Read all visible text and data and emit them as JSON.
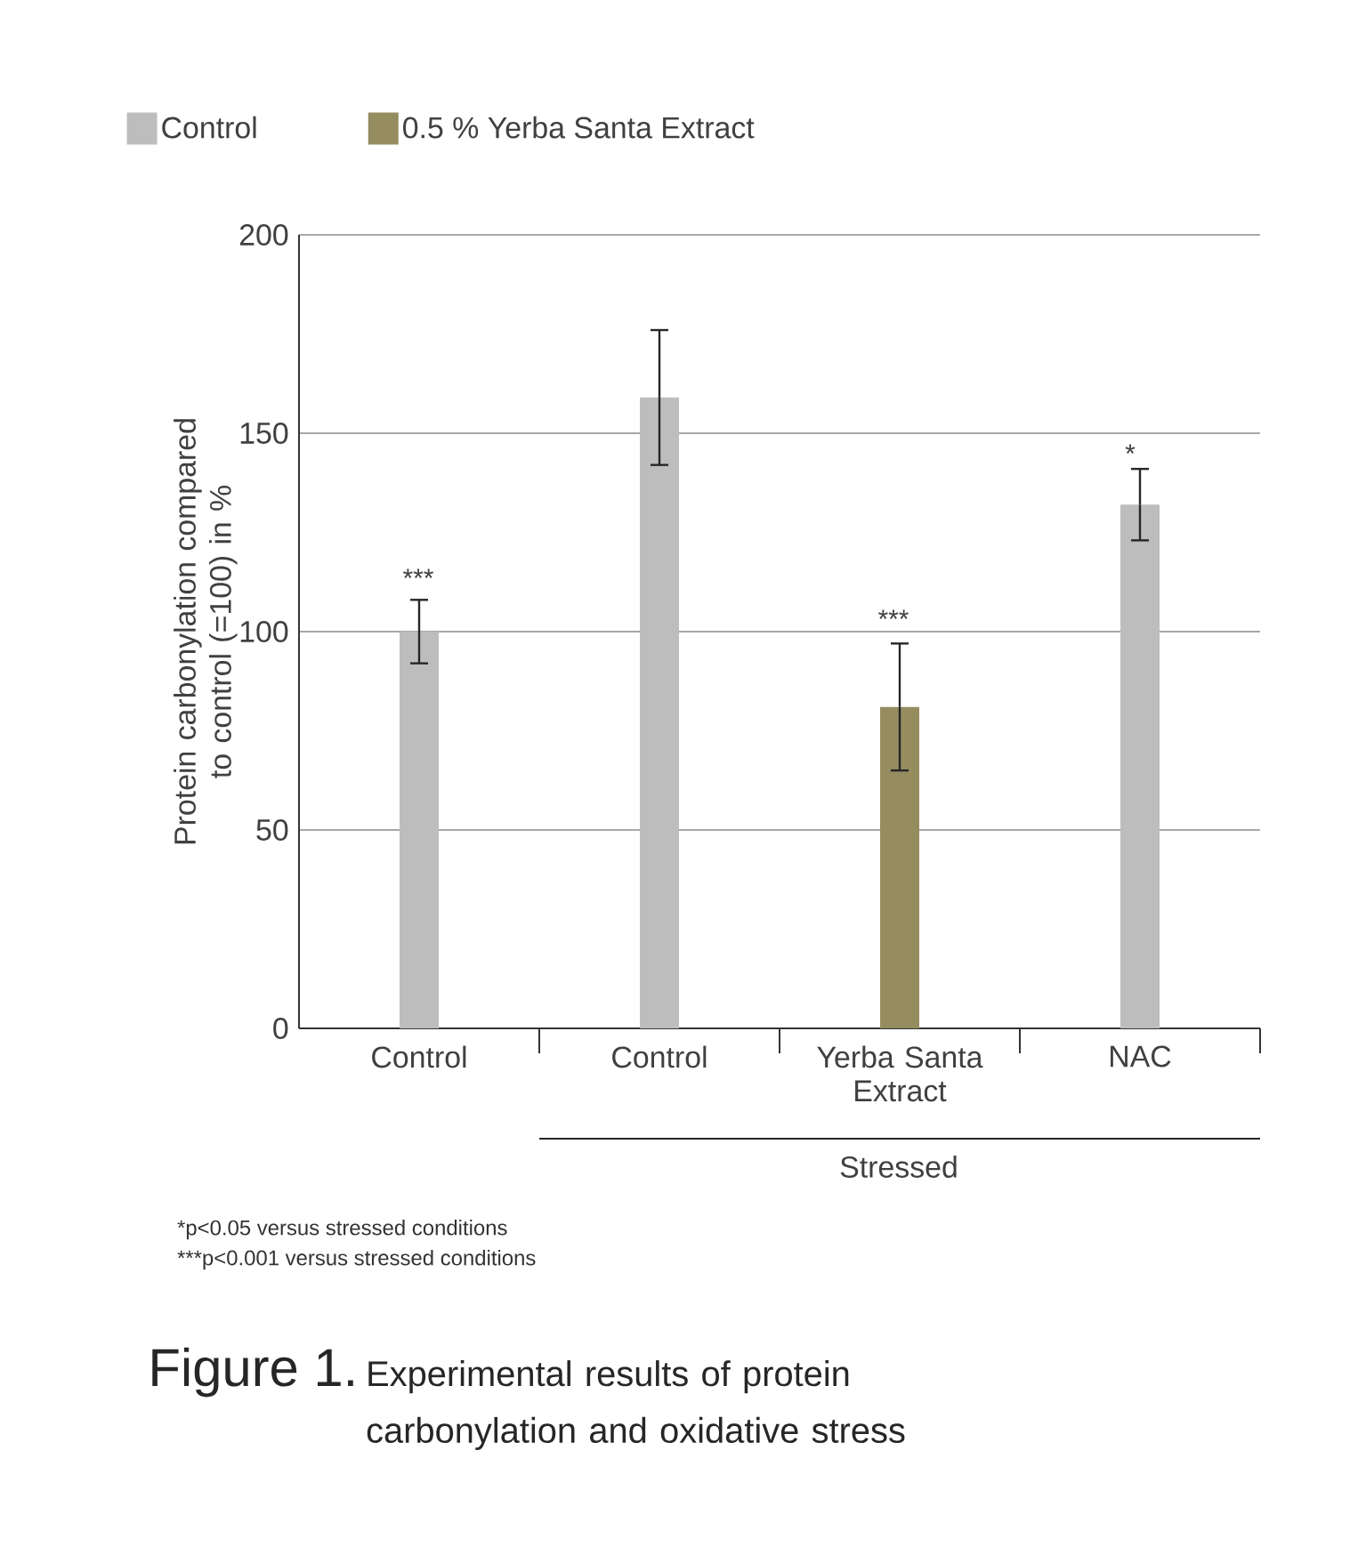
{
  "chart_data": {
    "type": "bar",
    "categories": [
      "Control",
      "Control",
      "Yerba Santa Extract",
      "NAC"
    ],
    "series": [
      {
        "name": "Control",
        "color": "#bdbdbd",
        "values": [
          100,
          159,
          null,
          132
        ],
        "errors": [
          [
            92,
            108
          ],
          [
            142,
            176
          ],
          null,
          [
            123,
            141
          ]
        ]
      },
      {
        "name": "0.5 % Yerba Santa Extract",
        "color": "#958c60",
        "values": [
          null,
          null,
          81,
          null
        ],
        "errors": [
          null,
          null,
          [
            65,
            97
          ],
          null
        ]
      }
    ],
    "ylabel": "Protein carbonylation compared to control (=100) in %",
    "ylim": [
      0,
      200
    ],
    "yticks": [
      0,
      50,
      100,
      150,
      200
    ],
    "grid": "y",
    "legend": "top left",
    "annotations": [
      "***",
      "***",
      "*",
      "Stressed",
      "*p<0.05 versus stressed conditions",
      "***p<0.001 versus stressed conditions",
      "Figure 1.",
      "Experimental results of protein carbonylation and oxidative stress"
    ]
  }
}
